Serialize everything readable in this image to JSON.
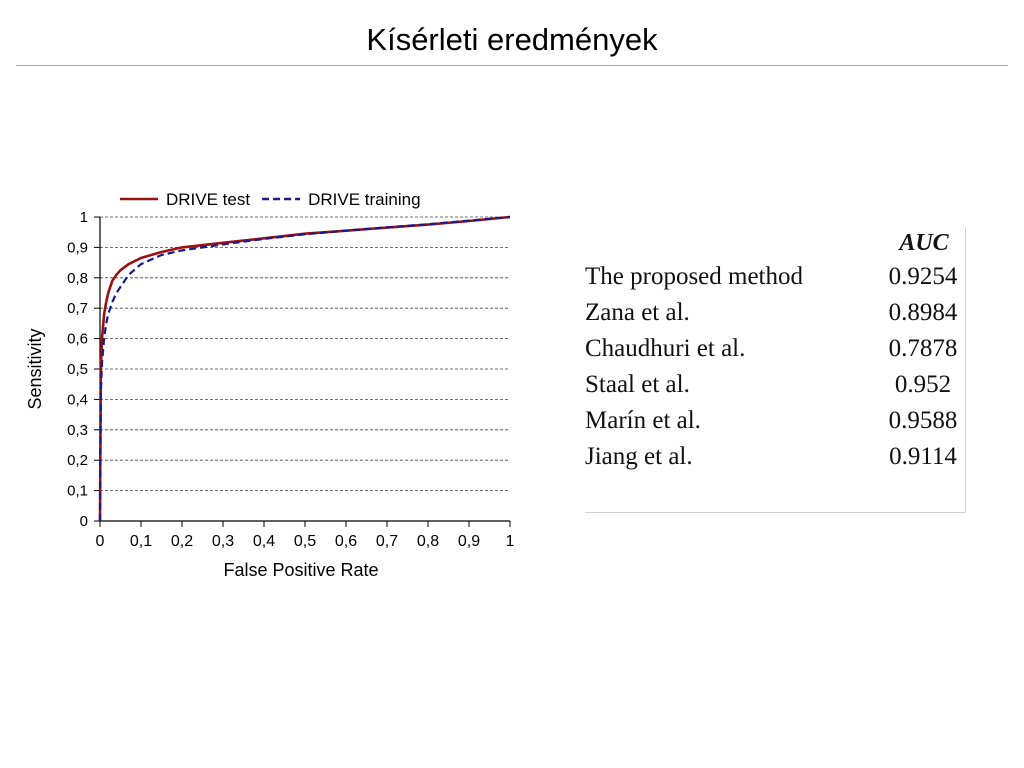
{
  "slide": {
    "title": "Kísérleti eredmények"
  },
  "chart_data": {
    "type": "line",
    "xlabel": "False Positive Rate",
    "ylabel": "Sensitivity",
    "xlim": [
      0,
      1
    ],
    "ylim": [
      0,
      1
    ],
    "x_ticks": [
      "0",
      "0,1",
      "0,2",
      "0,3",
      "0,4",
      "0,5",
      "0,6",
      "0,7",
      "0,8",
      "0,9",
      "1"
    ],
    "y_ticks": [
      "0",
      "0,1",
      "0,2",
      "0,3",
      "0,4",
      "0,5",
      "0,6",
      "0,7",
      "0,8",
      "0,9",
      "1"
    ],
    "grid": "horizontal dashed",
    "legend_position": "top",
    "series": [
      {
        "name": "DRIVE test",
        "color": "#9b1111",
        "dash": "solid",
        "x": [
          0,
          0.002,
          0.005,
          0.01,
          0.015,
          0.02,
          0.03,
          0.04,
          0.05,
          0.07,
          0.1,
          0.15,
          0.2,
          0.3,
          0.4,
          0.5,
          0.6,
          0.7,
          0.8,
          0.9,
          1.0
        ],
        "y": [
          0,
          0.5,
          0.6,
          0.68,
          0.72,
          0.75,
          0.79,
          0.81,
          0.825,
          0.845,
          0.865,
          0.885,
          0.9,
          0.915,
          0.93,
          0.945,
          0.955,
          0.965,
          0.975,
          0.987,
          1.0
        ]
      },
      {
        "name": "DRIVE training",
        "color": "#1a1a8c",
        "dash": "dashed",
        "x": [
          0,
          0.002,
          0.005,
          0.01,
          0.015,
          0.02,
          0.03,
          0.04,
          0.05,
          0.07,
          0.1,
          0.15,
          0.2,
          0.3,
          0.4,
          0.5,
          0.6,
          0.7,
          0.8,
          0.9,
          1.0
        ],
        "y": [
          0,
          0.42,
          0.52,
          0.6,
          0.65,
          0.68,
          0.72,
          0.75,
          0.77,
          0.81,
          0.845,
          0.875,
          0.89,
          0.91,
          0.928,
          0.943,
          0.955,
          0.966,
          0.976,
          0.988,
          1.0
        ]
      }
    ]
  },
  "auc_table": {
    "header": "AUC",
    "rows": [
      {
        "method": "The proposed method",
        "auc": "0.9254"
      },
      {
        "method": "Zana et al.",
        "auc": "0.8984"
      },
      {
        "method": "Chaudhuri et al.",
        "auc": "0.7878"
      },
      {
        "method": "Staal et al.",
        "auc": "0.952"
      },
      {
        "method": "Marín et al.",
        "auc": "0.9588"
      },
      {
        "method": "Jiang et al.",
        "auc": "0.9114"
      }
    ]
  }
}
